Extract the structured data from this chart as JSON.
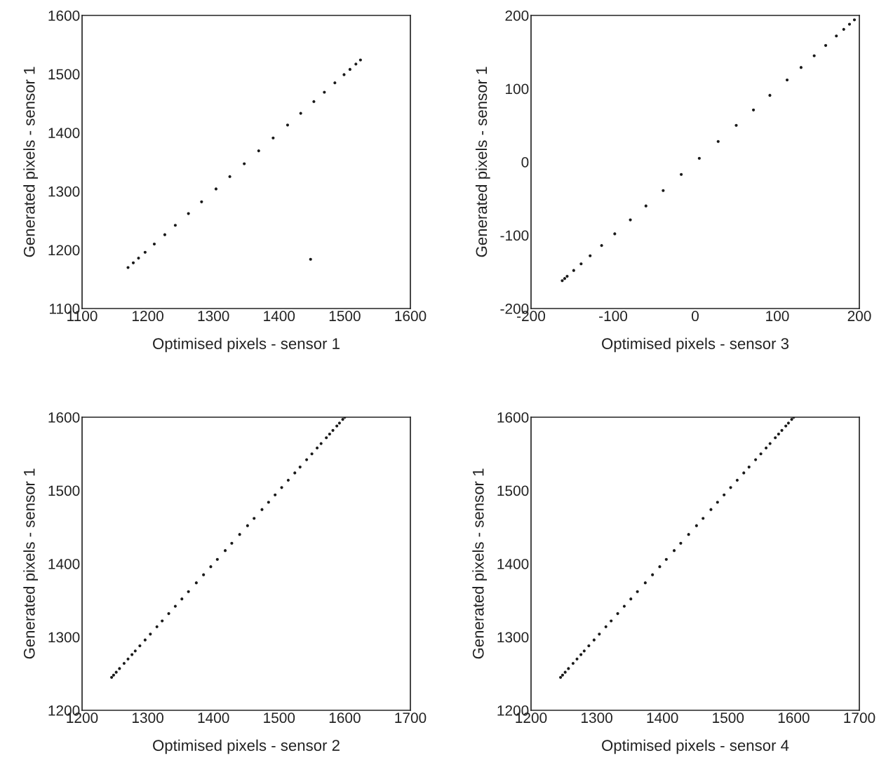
{
  "chart_data": [
    {
      "type": "scatter",
      "xlabel": "Optimised pixels - sensor 1",
      "ylabel": "Generated pixels - sensor 1",
      "marker": "circle",
      "color": "#1a1a1a",
      "grid": false,
      "x": [
        1170,
        1178,
        1186,
        1196,
        1210,
        1226,
        1242,
        1262,
        1282,
        1304,
        1325,
        1347,
        1369,
        1391,
        1413,
        1433,
        1453,
        1469,
        1485,
        1499,
        1508,
        1517,
        1524,
        1448
      ],
      "values": [
        1170,
        1178,
        1186,
        1196,
        1210,
        1226,
        1242,
        1262,
        1282,
        1304,
        1325,
        1347,
        1369,
        1391,
        1413,
        1433,
        1453,
        1469,
        1485,
        1499,
        1508,
        1517,
        1524,
        1184
      ],
      "xlim": [
        1100,
        1600
      ],
      "ylim": [
        1100,
        1600
      ],
      "xticks": [
        1100,
        1200,
        1300,
        1400,
        1500,
        1600
      ],
      "yticks": [
        1100,
        1200,
        1300,
        1400,
        1500,
        1600
      ]
    },
    {
      "type": "scatter",
      "xlabel": "Optimised pixels - sensor 3",
      "ylabel": "Generated pixels - sensor 1",
      "marker": "circle",
      "color": "#1a1a1a",
      "grid": false,
      "x": [
        -162,
        -159,
        -156,
        -148,
        -139,
        -128,
        -114,
        -98,
        -79,
        -60,
        -39,
        -17,
        5,
        28,
        50,
        71,
        91,
        112,
        129,
        145,
        159,
        172,
        181,
        188,
        194
      ],
      "values": [
        -162,
        -159,
        -156,
        -148,
        -139,
        -128,
        -114,
        -98,
        -79,
        -60,
        -39,
        -17,
        5,
        28,
        50,
        71,
        91,
        112,
        129,
        145,
        159,
        172,
        181,
        188,
        194
      ],
      "xlim": [
        -200,
        200
      ],
      "ylim": [
        -200,
        200
      ],
      "xticks": [
        -200,
        -100,
        0,
        100,
        200
      ],
      "yticks": [
        -200,
        -100,
        0,
        100,
        200
      ]
    },
    {
      "type": "scatter",
      "xlabel": "Optimised pixels - sensor 2",
      "ylabel": "Generated pixels - sensor 1",
      "marker": "circle",
      "color": "#1a1a1a",
      "grid": false,
      "x": [
        1245,
        1248,
        1252,
        1257,
        1264,
        1270,
        1276,
        1281,
        1288,
        1296,
        1304,
        1314,
        1322,
        1332,
        1342,
        1352,
        1362,
        1374,
        1385,
        1396,
        1406,
        1418,
        1428,
        1440,
        1452,
        1462,
        1474,
        1484,
        1494,
        1504,
        1514,
        1524,
        1532,
        1542,
        1550,
        1558,
        1564,
        1572,
        1577,
        1582,
        1588,
        1592,
        1597,
        1600
      ],
      "values": [
        1245,
        1248,
        1252,
        1257,
        1264,
        1270,
        1276,
        1281,
        1288,
        1296,
        1304,
        1314,
        1322,
        1332,
        1342,
        1352,
        1362,
        1374,
        1385,
        1396,
        1406,
        1418,
        1428,
        1440,
        1452,
        1462,
        1474,
        1484,
        1494,
        1504,
        1514,
        1524,
        1532,
        1542,
        1550,
        1558,
        1564,
        1572,
        1577,
        1582,
        1588,
        1592,
        1597,
        1600
      ],
      "xlim": [
        1200,
        1700
      ],
      "ylim": [
        1200,
        1600
      ],
      "xticks": [
        1200,
        1300,
        1400,
        1500,
        1600,
        1700
      ],
      "yticks": [
        1200,
        1300,
        1400,
        1500,
        1600
      ]
    },
    {
      "type": "scatter",
      "xlabel": "Optimised pixels - sensor 4",
      "ylabel": "Generated pixels - sensor 1",
      "marker": "circle",
      "color": "#1a1a1a",
      "grid": false,
      "x": [
        1245,
        1248,
        1252,
        1257,
        1264,
        1270,
        1276,
        1281,
        1288,
        1296,
        1304,
        1314,
        1322,
        1332,
        1342,
        1352,
        1362,
        1374,
        1385,
        1396,
        1406,
        1418,
        1428,
        1440,
        1452,
        1462,
        1474,
        1484,
        1494,
        1504,
        1514,
        1524,
        1532,
        1542,
        1550,
        1558,
        1564,
        1572,
        1577,
        1582,
        1588,
        1592,
        1597,
        1600
      ],
      "values": [
        1245,
        1248,
        1252,
        1257,
        1264,
        1270,
        1276,
        1281,
        1288,
        1296,
        1304,
        1314,
        1322,
        1332,
        1342,
        1352,
        1362,
        1374,
        1385,
        1396,
        1406,
        1418,
        1428,
        1440,
        1452,
        1462,
        1474,
        1484,
        1494,
        1504,
        1514,
        1524,
        1532,
        1542,
        1550,
        1558,
        1564,
        1572,
        1577,
        1582,
        1588,
        1592,
        1597,
        1600
      ],
      "xlim": [
        1200,
        1700
      ],
      "ylim": [
        1200,
        1600
      ],
      "xticks": [
        1200,
        1300,
        1400,
        1500,
        1600,
        1700
      ],
      "yticks": [
        1200,
        1300,
        1400,
        1500,
        1600
      ]
    }
  ]
}
